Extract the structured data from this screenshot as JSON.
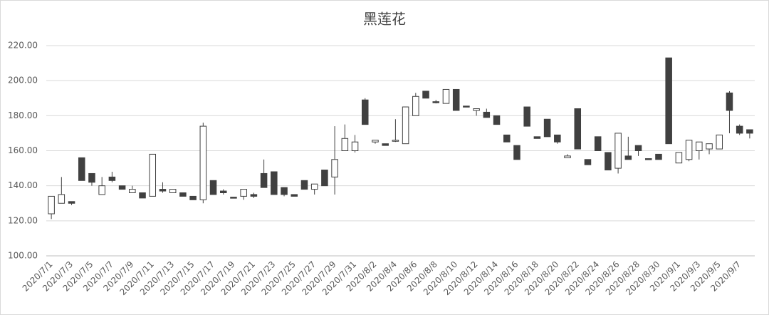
{
  "chart_data": {
    "type": "candlestick",
    "title": "黑莲花",
    "categories": [
      "2020/7/1",
      null,
      "2020/7/3",
      null,
      "2020/7/5",
      null,
      "2020/7/7",
      null,
      "2020/7/9",
      null,
      "2020/7/11",
      null,
      "2020/7/13",
      null,
      "2020/7/15",
      null,
      "2020/7/17",
      null,
      "2020/7/19",
      null,
      "2020/7/21",
      null,
      "2020/7/23",
      null,
      "2020/7/25",
      null,
      "2020/7/27",
      null,
      "2020/7/29",
      null,
      "2020/7/31",
      null,
      "2020/8/2",
      null,
      "2020/8/4",
      null,
      "2020/8/6",
      null,
      "2020/8/8",
      null,
      "2020/8/10",
      null,
      "2020/8/12",
      null,
      "2020/8/14",
      null,
      "2020/8/16",
      null,
      "2020/8/18",
      null,
      "2020/8/20",
      null,
      "2020/8/22",
      null,
      "2020/8/24",
      null,
      "2020/8/26",
      null,
      "2020/8/28",
      null,
      "2020/8/30",
      null,
      "2020/9/1",
      null,
      "2020/9/3",
      null,
      "2020/9/5",
      null,
      "2020/9/7",
      null
    ],
    "open": [
      124,
      130,
      131,
      156,
      147,
      135,
      145,
      140,
      136,
      136,
      134,
      138,
      136,
      136,
      134,
      132,
      143,
      137,
      133.5,
      134,
      135,
      147,
      148,
      139,
      135,
      143,
      138,
      149,
      145,
      160,
      160,
      189,
      165,
      164,
      165.5,
      164,
      180,
      194,
      188,
      187,
      195,
      185.5,
      183,
      182,
      180,
      169,
      163,
      185,
      168,
      178,
      169,
      156,
      184,
      155,
      168,
      159,
      150,
      157,
      163,
      155.5,
      158,
      213,
      153,
      155,
      160,
      161,
      161,
      193,
      174,
      172
    ],
    "high": [
      134,
      145,
      131,
      156,
      147,
      145,
      148,
      140,
      140,
      136,
      158,
      142,
      138,
      136,
      134,
      176,
      143,
      138,
      133.5,
      138,
      136,
      155,
      148,
      139,
      135,
      143,
      141,
      149,
      174,
      175,
      169,
      190,
      166,
      164,
      178,
      185,
      193,
      194,
      189,
      195,
      195,
      185.5,
      184,
      184,
      180,
      169,
      163,
      185,
      168,
      178,
      169,
      158,
      184,
      155,
      168,
      159,
      170,
      168,
      163,
      155.5,
      158,
      213,
      159,
      166,
      165,
      164,
      169,
      194,
      175,
      172
    ],
    "low": [
      121,
      130,
      129,
      143,
      140,
      135,
      142,
      138,
      136,
      133,
      134,
      136,
      136,
      134,
      132,
      130,
      135,
      135,
      133,
      132,
      133,
      139,
      135,
      134,
      134,
      138,
      135,
      140,
      135,
      160,
      159,
      175,
      164,
      163,
      165,
      164,
      180,
      190,
      187,
      187,
      183,
      185,
      180,
      179,
      175,
      165,
      155,
      174,
      167,
      168,
      164,
      156,
      161,
      152,
      160,
      149,
      147,
      155,
      157,
      155,
      155,
      164,
      153,
      154,
      155,
      158,
      161,
      170,
      169,
      167
    ],
    "close": [
      134,
      135,
      130,
      143,
      142,
      140,
      143,
      138,
      138,
      133,
      158,
      137,
      138,
      134,
      132,
      174,
      135,
      136,
      133,
      138,
      134,
      139,
      135,
      135,
      134,
      138,
      141,
      140,
      155,
      167,
      165,
      175,
      166,
      163,
      166,
      185,
      191,
      190,
      187.5,
      195,
      183,
      185,
      184,
      179,
      175,
      165,
      155,
      174,
      167,
      168,
      165,
      157,
      161,
      152,
      160,
      149,
      170,
      155,
      160,
      155,
      155,
      164,
      159,
      166,
      165,
      164,
      169,
      183,
      170,
      170
    ],
    "up_color": "#ffffff",
    "down_color": "#404040",
    "line_color": "#404040",
    "ylim": [
      100,
      220
    ],
    "yticks": [
      {
        "value": 100,
        "label": "100.00"
      },
      {
        "value": 120,
        "label": "120.00"
      },
      {
        "value": 140,
        "label": "140.00"
      },
      {
        "value": 160,
        "label": "160.00"
      },
      {
        "value": 180,
        "label": "180.00"
      },
      {
        "value": 200,
        "label": "200.00"
      },
      {
        "value": 220,
        "label": "220.00"
      }
    ],
    "grid": true
  }
}
